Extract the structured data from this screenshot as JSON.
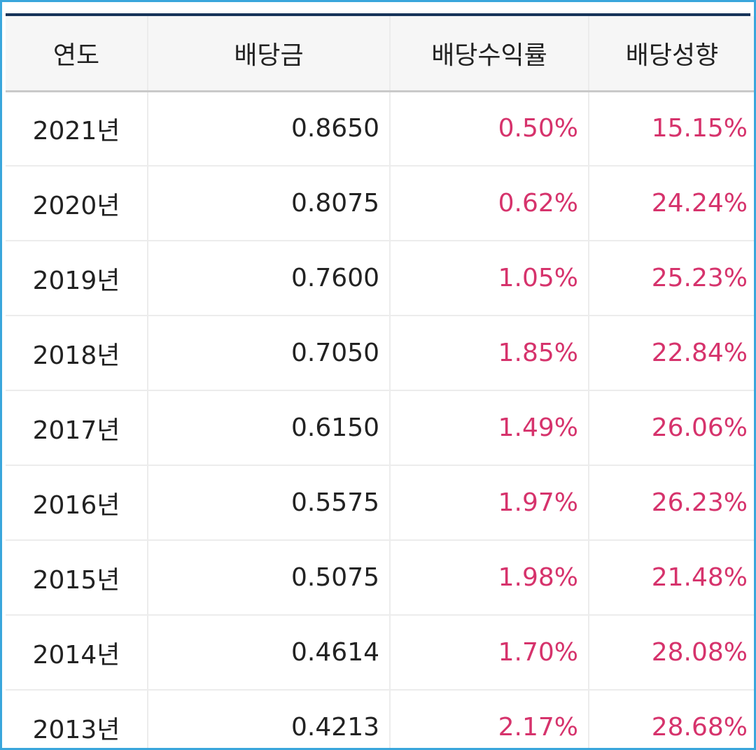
{
  "table": {
    "headers": [
      "연도",
      "배당금",
      "배당수익률",
      "배당성향"
    ],
    "rows": [
      {
        "year": "2021년",
        "dividend": "0.8650",
        "yield": "0.50%",
        "payout": "15.15%"
      },
      {
        "year": "2020년",
        "dividend": "0.8075",
        "yield": "0.62%",
        "payout": "24.24%"
      },
      {
        "year": "2019년",
        "dividend": "0.7600",
        "yield": "1.05%",
        "payout": "25.23%"
      },
      {
        "year": "2018년",
        "dividend": "0.7050",
        "yield": "1.85%",
        "payout": "22.84%"
      },
      {
        "year": "2017년",
        "dividend": "0.6150",
        "yield": "1.49%",
        "payout": "26.06%"
      },
      {
        "year": "2016년",
        "dividend": "0.5575",
        "yield": "1.97%",
        "payout": "26.23%"
      },
      {
        "year": "2015년",
        "dividend": "0.5075",
        "yield": "1.98%",
        "payout": "21.48%"
      },
      {
        "year": "2014년",
        "dividend": "0.4614",
        "yield": "1.70%",
        "payout": "28.08%"
      },
      {
        "year": "2013년",
        "dividend": "0.4213",
        "yield": "2.17%",
        "payout": "28.68%"
      }
    ]
  },
  "colors": {
    "frame_border": "#3aa6dc",
    "top_rule": "#17345a",
    "header_bg": "#f6f6f6",
    "text": "#222222",
    "percent_text": "#d6336c"
  }
}
